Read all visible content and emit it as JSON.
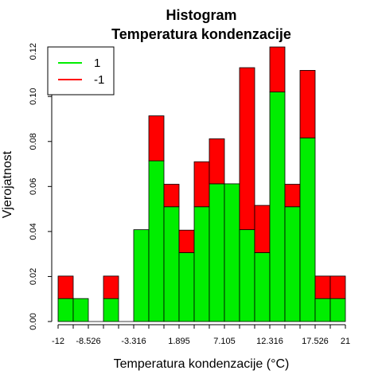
{
  "chart_data": {
    "type": "bar",
    "title": "Histogram",
    "subtitle": "Temperatura kondenzacije",
    "xlabel": "Temperatura kondenzacije (°C)",
    "ylabel": "Vjerojatnost",
    "xlim": [
      -12,
      21
    ],
    "ylim": [
      0,
      0.122
    ],
    "x_tick_labels": [
      "-12",
      "-8.526",
      "-3.316",
      "1.895",
      "7.105",
      "12.316",
      "17.526",
      "21"
    ],
    "x_tick_values": [
      -12,
      -8.526,
      -3.316,
      1.895,
      7.105,
      12.316,
      17.526,
      21
    ],
    "y_tick_labels": [
      "0.00",
      "0.02",
      "0.04",
      "0.06",
      "0.08",
      "0.10",
      "0.12"
    ],
    "y_tick_values": [
      0,
      0.02,
      0.04,
      0.06,
      0.08,
      0.1,
      0.12
    ],
    "bin_edges": [
      -12,
      -10.263,
      -8.526,
      -6.789,
      -5.053,
      -3.316,
      -1.579,
      0.158,
      1.895,
      3.632,
      5.368,
      7.105,
      8.842,
      10.579,
      12.316,
      14.053,
      15.789,
      17.526,
      19.263,
      21
    ],
    "series": [
      {
        "name": "1",
        "color": "#00ee00",
        "values": [
          0.0102,
          0.0102,
          0,
          0.0102,
          0,
          0.0408,
          0.0714,
          0.051,
          0.0306,
          0.051,
          0.0612,
          0.0612,
          0.0408,
          0.0306,
          0.102,
          0.051,
          0.0816,
          0.0102,
          0.0102
        ]
      },
      {
        "name": "-1",
        "color": "#ff0000",
        "values": [
          0.01,
          0,
          0,
          0.01,
          0,
          0,
          0.02,
          0.01,
          0.01,
          0.02,
          0.02,
          0,
          0.072,
          0.021,
          0.02,
          0.01,
          0.03,
          0.01,
          0.01
        ]
      }
    ],
    "stacked": true,
    "legend_position": "top-left",
    "grid": false
  },
  "legend": {
    "items": [
      {
        "label": "1",
        "color": "#00ee00"
      },
      {
        "label": "-1",
        "color": "#ff0000"
      }
    ]
  }
}
